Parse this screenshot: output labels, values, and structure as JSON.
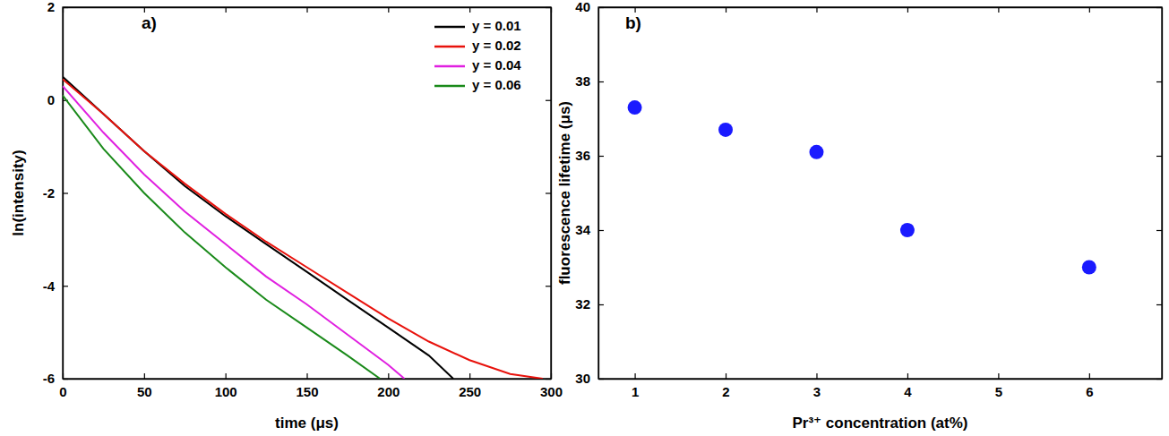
{
  "chart_data": [
    {
      "type": "line",
      "annotations": [
        "a)"
      ],
      "x_label": "time (μs)",
      "y_label": "ln(intensity)",
      "xlim": [
        0,
        300
      ],
      "xticks": [
        0,
        50,
        100,
        150,
        200,
        250,
        300
      ],
      "ylim": [
        -6,
        2
      ],
      "yticks": [
        -6,
        -4,
        -2,
        0,
        2
      ],
      "legend": "upper right",
      "series": [
        {
          "name": "y = 0.01",
          "color": "#000000",
          "line_style": "solid",
          "x": [
            0,
            25,
            50,
            75,
            100,
            125,
            150,
            175,
            200,
            225,
            240
          ],
          "values": [
            0.5,
            -0.3,
            -1.1,
            -1.85,
            -2.5,
            -3.1,
            -3.7,
            -4.3,
            -4.9,
            -5.5,
            -6.0
          ]
        },
        {
          "name": "y = 0.02",
          "color": "#e8120c",
          "line_style": "solid",
          "x": [
            0,
            25,
            50,
            75,
            100,
            125,
            150,
            175,
            200,
            225,
            250,
            275,
            295
          ],
          "values": [
            0.45,
            -0.3,
            -1.1,
            -1.8,
            -2.45,
            -3.05,
            -3.6,
            -4.15,
            -4.7,
            -5.2,
            -5.6,
            -5.9,
            -6.0
          ]
        },
        {
          "name": "y = 0.04",
          "color": "#e020e0",
          "line_style": "solid",
          "x": [
            0,
            25,
            50,
            75,
            100,
            125,
            150,
            175,
            200,
            210
          ],
          "values": [
            0.3,
            -0.7,
            -1.6,
            -2.4,
            -3.1,
            -3.8,
            -4.4,
            -5.05,
            -5.7,
            -6.0
          ]
        },
        {
          "name": "y = 0.06",
          "color": "#1a8a1a",
          "line_style": "solid",
          "x": [
            0,
            25,
            50,
            75,
            100,
            125,
            150,
            175,
            195
          ],
          "values": [
            0.1,
            -1.05,
            -2.0,
            -2.85,
            -3.6,
            -4.3,
            -4.9,
            -5.5,
            -6.0
          ]
        }
      ]
    },
    {
      "type": "scatter",
      "annotations": [
        "b)"
      ],
      "x_label": "Pr³⁺ concentration (at%)",
      "y_label": "fluorescence lifetime (μs)",
      "xlim": [
        0.6,
        6.8
      ],
      "xticks": [
        1,
        2,
        3,
        4,
        5,
        6
      ],
      "ylim": [
        30,
        40
      ],
      "yticks": [
        30,
        32,
        34,
        36,
        38,
        40
      ],
      "x": [
        1,
        2,
        3,
        4,
        6
      ],
      "series": [
        {
          "color": "#1a1aff",
          "marker": "circle",
          "values": [
            37.3,
            36.7,
            36.1,
            34.0,
            33.0
          ]
        }
      ]
    }
  ]
}
